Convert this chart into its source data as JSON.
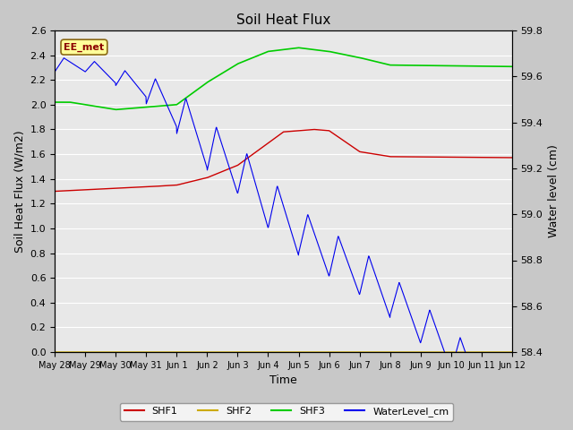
{
  "title": "Soil Heat Flux",
  "ylabel_left": "Soil Heat Flux (W/m2)",
  "ylabel_right": "Water level (cm)",
  "xlabel": "Time",
  "annotation_text": "EE_met",
  "fig_bg_color": "#c8c8c8",
  "plot_bg_color": "#e8e8e8",
  "ylim_left": [
    0.0,
    2.6
  ],
  "ylim_right": [
    58.4,
    59.8
  ],
  "yticks_left": [
    0.0,
    0.2,
    0.4,
    0.6,
    0.8,
    1.0,
    1.2,
    1.4,
    1.6,
    1.8,
    2.0,
    2.2,
    2.4,
    2.6
  ],
  "yticks_right": [
    58.4,
    58.6,
    58.8,
    59.0,
    59.2,
    59.4,
    59.6,
    59.8
  ],
  "grid_color": "#ffffff",
  "shf1_color": "#cc0000",
  "shf2_color": "#ccaa00",
  "shf3_color": "#00cc00",
  "water_color": "#0000ee",
  "x_tick_labels": [
    "May 28",
    "May 29",
    "May 30",
    "May 31",
    "Jun 1",
    "Jun 2",
    "Jun 3",
    "Jun 4",
    "Jun 5",
    "Jun 6",
    "Jun 7",
    "Jun 8",
    "Jun 9",
    "Jun 10",
    "Jun 11",
    "Jun 12"
  ]
}
